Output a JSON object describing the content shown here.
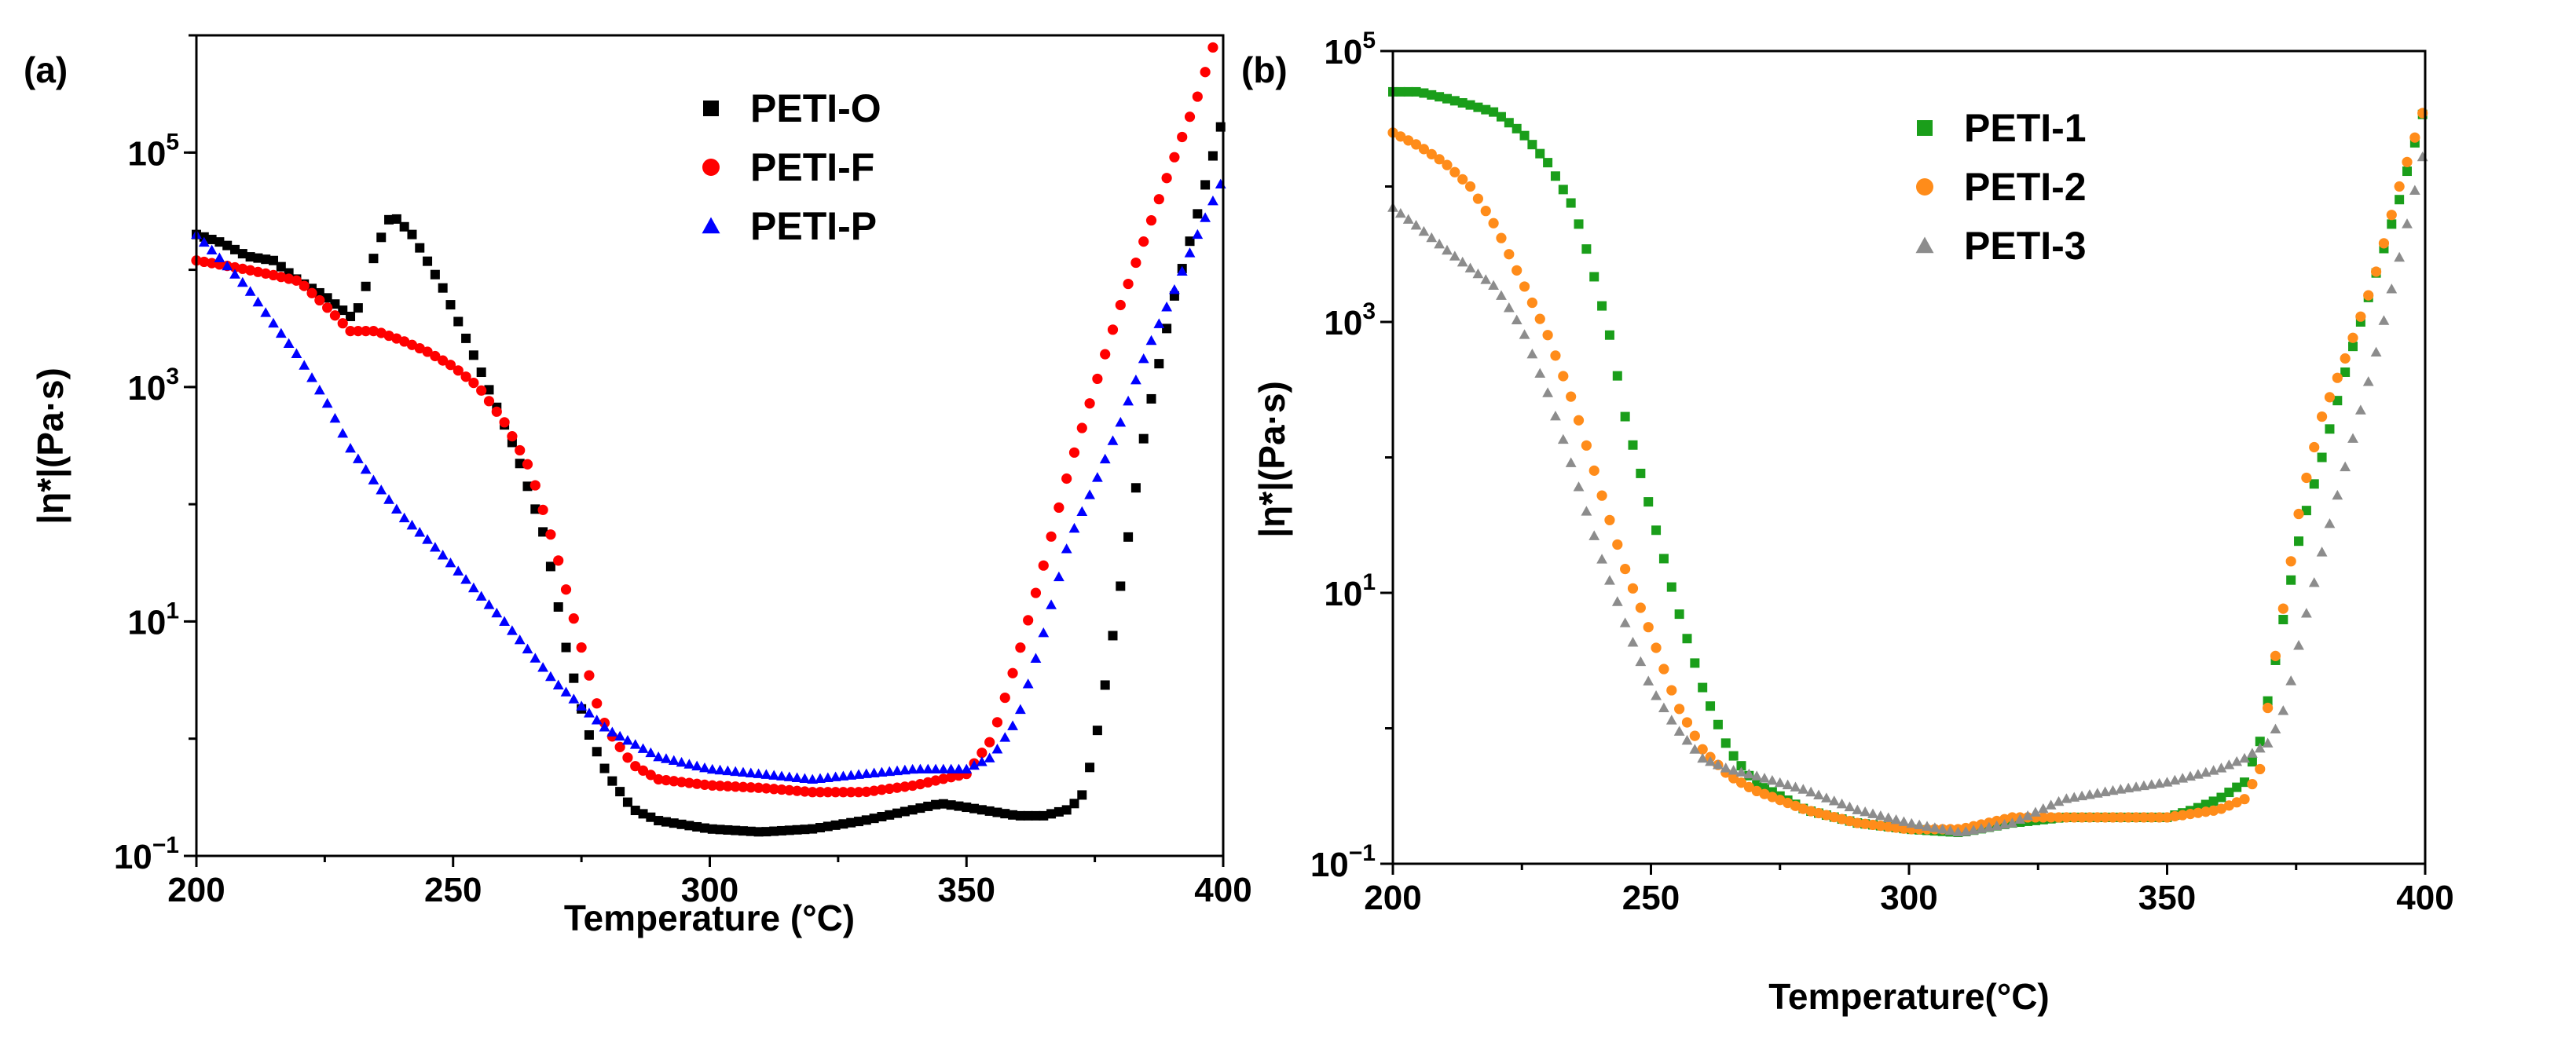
{
  "chart_data": [
    {
      "type": "scatter",
      "panel_label": "(a)",
      "xlabel": "Temperature (°C)",
      "ylabel": "|η*|(Pa·s)",
      "xscale": "linear",
      "yscale": "log",
      "xlim": [
        200,
        400
      ],
      "ylim": [
        0.1,
        1000000
      ],
      "xticks": [
        200,
        250,
        300,
        350,
        400
      ],
      "xtick_labels": [
        "200",
        "250",
        "300",
        "350",
        "400"
      ],
      "yticks": [
        0.1,
        10,
        1000,
        100000
      ],
      "ytick_labels": [
        {
          "base": "10",
          "exp": "−1"
        },
        {
          "base": "10",
          "exp": "1"
        },
        {
          "base": "10",
          "exp": "3"
        },
        {
          "base": "10",
          "exp": "5"
        }
      ],
      "legend_position": "top-center",
      "series": [
        {
          "name": "PETI-O",
          "marker": "square",
          "color": "#000000",
          "x": [
            200,
            205,
            210,
            215,
            220,
            225,
            230,
            232,
            235,
            238,
            242,
            248,
            255,
            262,
            268,
            272,
            276,
            280,
            285,
            290,
            300,
            310,
            320,
            330,
            340,
            345,
            350,
            360,
            365,
            370,
            373,
            376,
            380,
            385,
            390,
            395,
            400
          ],
          "y": [
            20000,
            17000,
            13000,
            12000,
            8000,
            6000,
            4000,
            5000,
            15000,
            30000,
            20000,
            7000,
            1500,
            300,
            50,
            6,
            1.2,
            0.5,
            0.25,
            0.2,
            0.17,
            0.16,
            0.17,
            0.2,
            0.25,
            0.28,
            0.26,
            0.22,
            0.22,
            0.25,
            0.35,
            1.5,
            20,
            500,
            5000,
            30000,
            200000
          ]
        },
        {
          "name": "PETI-F",
          "marker": "circle",
          "color": "#ff0000",
          "x": [
            200,
            205,
            210,
            215,
            220,
            225,
            230,
            235,
            240,
            245,
            250,
            255,
            260,
            265,
            270,
            275,
            278,
            280,
            285,
            290,
            300,
            310,
            320,
            330,
            340,
            345,
            350,
            355,
            360,
            365,
            370,
            375,
            380,
            385,
            390,
            395,
            400
          ],
          "y": [
            12000,
            11000,
            10000,
            9000,
            8000,
            5000,
            3000,
            3000,
            2500,
            2000,
            1500,
            1000,
            500,
            200,
            40,
            6,
            2,
            1.2,
            0.6,
            0.45,
            0.4,
            0.38,
            0.35,
            0.35,
            0.4,
            0.45,
            0.5,
            1,
            5,
            30,
            200,
            1000,
            5000,
            20000,
            80000,
            300000,
            1500000
          ]
        },
        {
          "name": "PETI-P",
          "marker": "triangle",
          "color": "#0000ff",
          "x": [
            200,
            205,
            210,
            215,
            220,
            225,
            230,
            235,
            240,
            245,
            250,
            260,
            270,
            280,
            290,
            300,
            310,
            320,
            330,
            340,
            345,
            350,
            355,
            360,
            365,
            370,
            375,
            380,
            385,
            390,
            395,
            400
          ],
          "y": [
            20000,
            12000,
            7000,
            3500,
            1800,
            800,
            300,
            150,
            80,
            50,
            30,
            10,
            3,
            1.2,
            0.7,
            0.55,
            0.5,
            0.45,
            0.5,
            0.55,
            0.55,
            0.55,
            0.7,
            1.5,
            8,
            50,
            150,
            500,
            2000,
            6000,
            20000,
            60000
          ]
        }
      ]
    },
    {
      "type": "scatter",
      "panel_label": "(b)",
      "xlabel": "Temperature(°C)",
      "ylabel": "|η*|(Pa·s)",
      "xscale": "linear",
      "yscale": "log",
      "xlim": [
        200,
        400
      ],
      "ylim": [
        0.1,
        100000
      ],
      "xticks": [
        200,
        250,
        300,
        350,
        400
      ],
      "xtick_labels": [
        "200",
        "250",
        "300",
        "350",
        "400"
      ],
      "yticks": [
        0.1,
        10,
        1000,
        100000
      ],
      "ytick_labels": [
        {
          "base": "10",
          "exp": "−1"
        },
        {
          "base": "10",
          "exp": "1"
        },
        {
          "base": "10",
          "exp": "3"
        },
        {
          "base": "10",
          "exp": "5"
        }
      ],
      "legend_position": "top-center",
      "series": [
        {
          "name": "PETI-1",
          "marker": "square",
          "color": "#1a9e1a",
          "x": [
            200,
            205,
            210,
            215,
            220,
            225,
            230,
            235,
            238,
            242,
            245,
            250,
            255,
            260,
            265,
            270,
            280,
            290,
            300,
            310,
            320,
            330,
            340,
            350,
            355,
            360,
            365,
            368,
            370,
            373,
            376,
            380,
            385,
            390,
            395,
            400
          ],
          "y": [
            50000,
            50000,
            45000,
            40000,
            35000,
            25000,
            15000,
            7000,
            3000,
            800,
            200,
            40,
            8,
            2,
            0.7,
            0.4,
            0.25,
            0.2,
            0.18,
            0.17,
            0.2,
            0.22,
            0.22,
            0.22,
            0.25,
            0.3,
            0.4,
            0.8,
            2,
            8,
            30,
            100,
            500,
            2000,
            8000,
            40000
          ]
        },
        {
          "name": "PETI-2",
          "marker": "circle",
          "color": "#ff8c1a",
          "x": [
            200,
            205,
            210,
            215,
            220,
            225,
            230,
            235,
            240,
            245,
            250,
            255,
            260,
            265,
            270,
            280,
            290,
            300,
            310,
            320,
            330,
            340,
            350,
            360,
            365,
            368,
            370,
            373,
            376,
            380,
            385,
            390,
            395,
            400
          ],
          "y": [
            25000,
            20000,
            15000,
            10000,
            5000,
            2000,
            800,
            250,
            60,
            15,
            5,
            1.5,
            0.7,
            0.45,
            0.35,
            0.25,
            0.2,
            0.18,
            0.18,
            0.22,
            0.22,
            0.22,
            0.22,
            0.25,
            0.3,
            0.5,
            2,
            10,
            50,
            200,
            600,
            2000,
            10000,
            40000
          ]
        },
        {
          "name": "PETI-3",
          "marker": "triangle",
          "color": "#8c8c8c",
          "x": [
            200,
            205,
            210,
            215,
            220,
            225,
            230,
            235,
            240,
            245,
            250,
            255,
            260,
            265,
            270,
            280,
            290,
            300,
            310,
            320,
            330,
            340,
            350,
            360,
            365,
            370,
            373,
            376,
            380,
            385,
            390,
            395,
            400
          ],
          "y": [
            7000,
            5000,
            3500,
            2500,
            1800,
            900,
            300,
            80,
            20,
            6,
            2,
            1,
            0.6,
            0.5,
            0.45,
            0.35,
            0.25,
            0.2,
            0.17,
            0.2,
            0.3,
            0.35,
            0.4,
            0.5,
            0.6,
            0.8,
            1.5,
            5,
            20,
            100,
            500,
            3000,
            20000
          ]
        }
      ]
    }
  ]
}
